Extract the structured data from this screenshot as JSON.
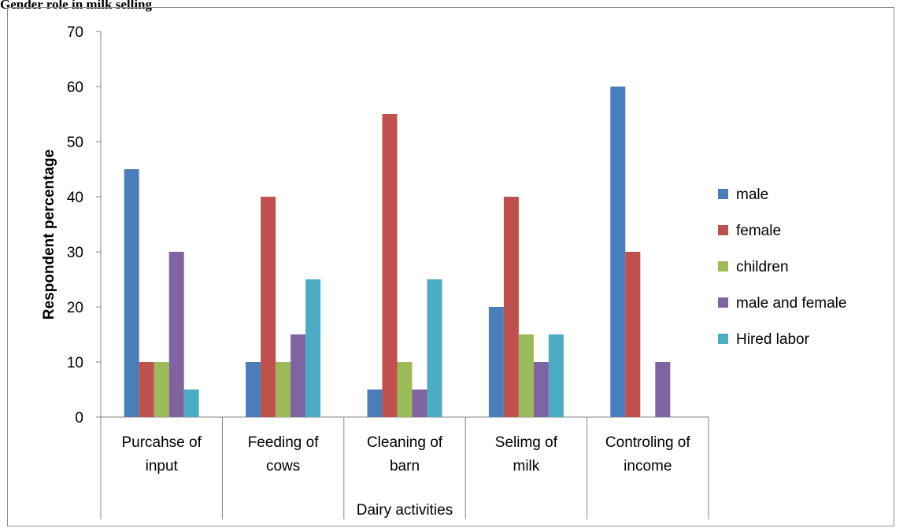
{
  "page": {
    "title": "Gender role in milk selling"
  },
  "chart_data": {
    "type": "bar",
    "title": "",
    "xlabel": "Dairy activities",
    "ylabel": "Respondent percentage",
    "ylim": [
      0,
      70
    ],
    "ytick_step": 10,
    "grid": false,
    "legend_position": "right",
    "categories": [
      [
        "Purcahse of",
        "input"
      ],
      [
        "Feeding of",
        "cows"
      ],
      [
        "Cleaning of",
        "barn"
      ],
      [
        "Selimg of",
        "milk"
      ],
      [
        "Controling of",
        "income"
      ]
    ],
    "series": [
      {
        "name": "male",
        "color": "#4a7ebb",
        "values": [
          45,
          10,
          5,
          20,
          60
        ]
      },
      {
        "name": "female",
        "color": "#c0504d",
        "values": [
          10,
          40,
          55,
          40,
          30
        ]
      },
      {
        "name": "children",
        "color": "#9bbb59",
        "values": [
          10,
          10,
          10,
          15,
          0
        ]
      },
      {
        "name": "male and female",
        "color": "#8064a2",
        "values": [
          30,
          15,
          5,
          10,
          10
        ]
      },
      {
        "name": "Hired labor",
        "color": "#4bacc6",
        "values": [
          5,
          25,
          25,
          15,
          0
        ]
      }
    ]
  }
}
